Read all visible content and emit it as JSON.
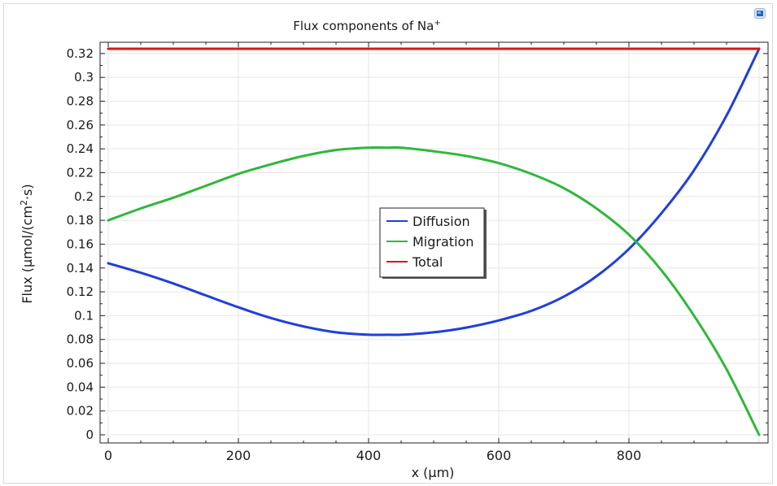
{
  "chart_data": {
    "type": "line",
    "title": "Flux components of Na",
    "title_superscript": "+",
    "xlabel": "x (µm)",
    "ylabel_prefix": "Flux (µmol/(cm",
    "ylabel_superscript": "2",
    "ylabel_suffix": "·s)",
    "xlim": [
      0,
      1000
    ],
    "ylim": [
      0,
      0.324
    ],
    "x_ticks": [
      0,
      200,
      400,
      600,
      800
    ],
    "x_tick_labels": [
      "0",
      "200",
      "400",
      "600",
      "800"
    ],
    "y_ticks": [
      0,
      0.02,
      0.04,
      0.06,
      0.08,
      0.1,
      0.12,
      0.14,
      0.16,
      0.18,
      0.2,
      0.22,
      0.24,
      0.26,
      0.28,
      0.3,
      0.32
    ],
    "y_tick_labels": [
      "0",
      "0.02",
      "0.04",
      "0.06",
      "0.08",
      "0.1",
      "0.12",
      "0.14",
      "0.16",
      "0.18",
      "0.2",
      "0.22",
      "0.24",
      "0.26",
      "0.28",
      "0.3",
      "0.32"
    ],
    "grid": true,
    "legend_position": "center",
    "series": [
      {
        "name": "Diffusion",
        "color": "#1f3fdc",
        "x": [
          0,
          50,
          100,
          150,
          200,
          250,
          300,
          350,
          400,
          430,
          450,
          500,
          550,
          600,
          650,
          700,
          750,
          800,
          850,
          900,
          950,
          1000
        ],
        "y": [
          0.144,
          0.136,
          0.127,
          0.117,
          0.107,
          0.098,
          0.091,
          0.086,
          0.084,
          0.084,
          0.084,
          0.086,
          0.09,
          0.096,
          0.104,
          0.116,
          0.133,
          0.156,
          0.186,
          0.222,
          0.268,
          0.324
        ]
      },
      {
        "name": "Migration",
        "color": "#2fb83a",
        "x": [
          0,
          50,
          100,
          150,
          200,
          250,
          300,
          350,
          400,
          430,
          450,
          500,
          550,
          600,
          650,
          700,
          750,
          800,
          850,
          900,
          950,
          1000
        ],
        "y": [
          0.18,
          0.19,
          0.199,
          0.209,
          0.219,
          0.227,
          0.234,
          0.239,
          0.241,
          0.241,
          0.241,
          0.238,
          0.234,
          0.228,
          0.219,
          0.207,
          0.19,
          0.168,
          0.138,
          0.1,
          0.055,
          0.0
        ]
      },
      {
        "name": "Total",
        "color": "#e01515",
        "x": [
          0,
          1000
        ],
        "y": [
          0.324,
          0.324
        ]
      }
    ]
  }
}
